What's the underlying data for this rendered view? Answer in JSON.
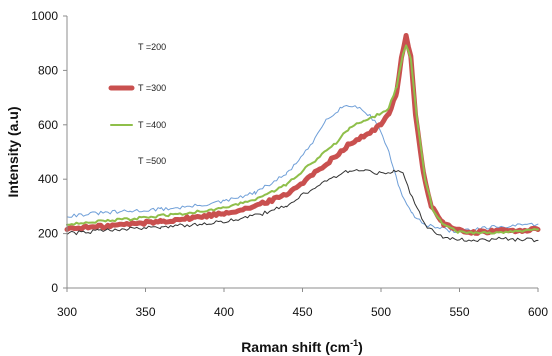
{
  "chart_data": {
    "type": "line",
    "xlabel": "Raman shift (cm",
    "xlabel_sup": "-1",
    "xlabel_end": ")",
    "ylabel": "Intensity (a.u)",
    "xlim": [
      300,
      600
    ],
    "ylim": [
      0,
      1000
    ],
    "xticks": [
      "300",
      "350",
      "400",
      "450",
      "500",
      "550",
      "600"
    ],
    "yticks": [
      "0",
      "200",
      "400",
      "600",
      "800",
      "1000"
    ],
    "grid": false,
    "legend_placement": "upper-left, inside plot",
    "series": [
      {
        "name": "T =200",
        "color": "#6f9fd8",
        "points": [
          [
            300,
            265
          ],
          [
            320,
            275
          ],
          [
            340,
            282
          ],
          [
            360,
            290
          ],
          [
            380,
            300
          ],
          [
            400,
            318
          ],
          [
            420,
            350
          ],
          [
            440,
            420
          ],
          [
            455,
            520
          ],
          [
            465,
            620
          ],
          [
            475,
            665
          ],
          [
            482,
            672
          ],
          [
            490,
            650
          ],
          [
            498,
            600
          ],
          [
            505,
            500
          ],
          [
            512,
            360
          ],
          [
            520,
            270
          ],
          [
            530,
            230
          ],
          [
            545,
            210
          ],
          [
            560,
            215
          ],
          [
            575,
            225
          ],
          [
            590,
            230
          ],
          [
            600,
            235
          ]
        ]
      },
      {
        "name": "T =300",
        "color": "#c9504f",
        "points": [
          [
            300,
            218
          ],
          [
            320,
            225
          ],
          [
            340,
            235
          ],
          [
            360,
            245
          ],
          [
            380,
            258
          ],
          [
            400,
            275
          ],
          [
            420,
            300
          ],
          [
            440,
            345
          ],
          [
            455,
            410
          ],
          [
            470,
            480
          ],
          [
            480,
            530
          ],
          [
            490,
            560
          ],
          [
            500,
            600
          ],
          [
            505,
            640
          ],
          [
            510,
            720
          ],
          [
            513,
            850
          ],
          [
            516,
            925
          ],
          [
            519,
            850
          ],
          [
            522,
            640
          ],
          [
            527,
            420
          ],
          [
            532,
            300
          ],
          [
            540,
            235
          ],
          [
            550,
            210
          ],
          [
            560,
            205
          ],
          [
            575,
            210
          ],
          [
            590,
            212
          ],
          [
            600,
            215
          ]
        ]
      },
      {
        "name": "T =400",
        "color": "#8fbf4a",
        "points": [
          [
            300,
            235
          ],
          [
            320,
            245
          ],
          [
            340,
            253
          ],
          [
            360,
            265
          ],
          [
            380,
            278
          ],
          [
            400,
            295
          ],
          [
            420,
            325
          ],
          [
            440,
            380
          ],
          [
            455,
            455
          ],
          [
            470,
            525
          ],
          [
            480,
            590
          ],
          [
            490,
            620
          ],
          [
            500,
            640
          ],
          [
            505,
            665
          ],
          [
            510,
            740
          ],
          [
            514,
            860
          ],
          [
            516,
            895
          ],
          [
            519,
            840
          ],
          [
            523,
            620
          ],
          [
            528,
            400
          ],
          [
            533,
            290
          ],
          [
            540,
            230
          ],
          [
            550,
            205
          ],
          [
            560,
            200
          ],
          [
            575,
            205
          ],
          [
            590,
            210
          ],
          [
            600,
            215
          ]
        ]
      },
      {
        "name": "T =500",
        "color": "#333333",
        "points": [
          [
            300,
            200
          ],
          [
            320,
            210
          ],
          [
            340,
            218
          ],
          [
            360,
            225
          ],
          [
            380,
            233
          ],
          [
            400,
            245
          ],
          [
            420,
            265
          ],
          [
            440,
            305
          ],
          [
            455,
            360
          ],
          [
            470,
            410
          ],
          [
            480,
            430
          ],
          [
            490,
            435
          ],
          [
            500,
            420
          ],
          [
            508,
            430
          ],
          [
            514,
            420
          ],
          [
            520,
            330
          ],
          [
            528,
            230
          ],
          [
            538,
            190
          ],
          [
            550,
            180
          ],
          [
            560,
            175
          ],
          [
            575,
            180
          ],
          [
            590,
            178
          ],
          [
            600,
            175
          ]
        ]
      }
    ]
  }
}
